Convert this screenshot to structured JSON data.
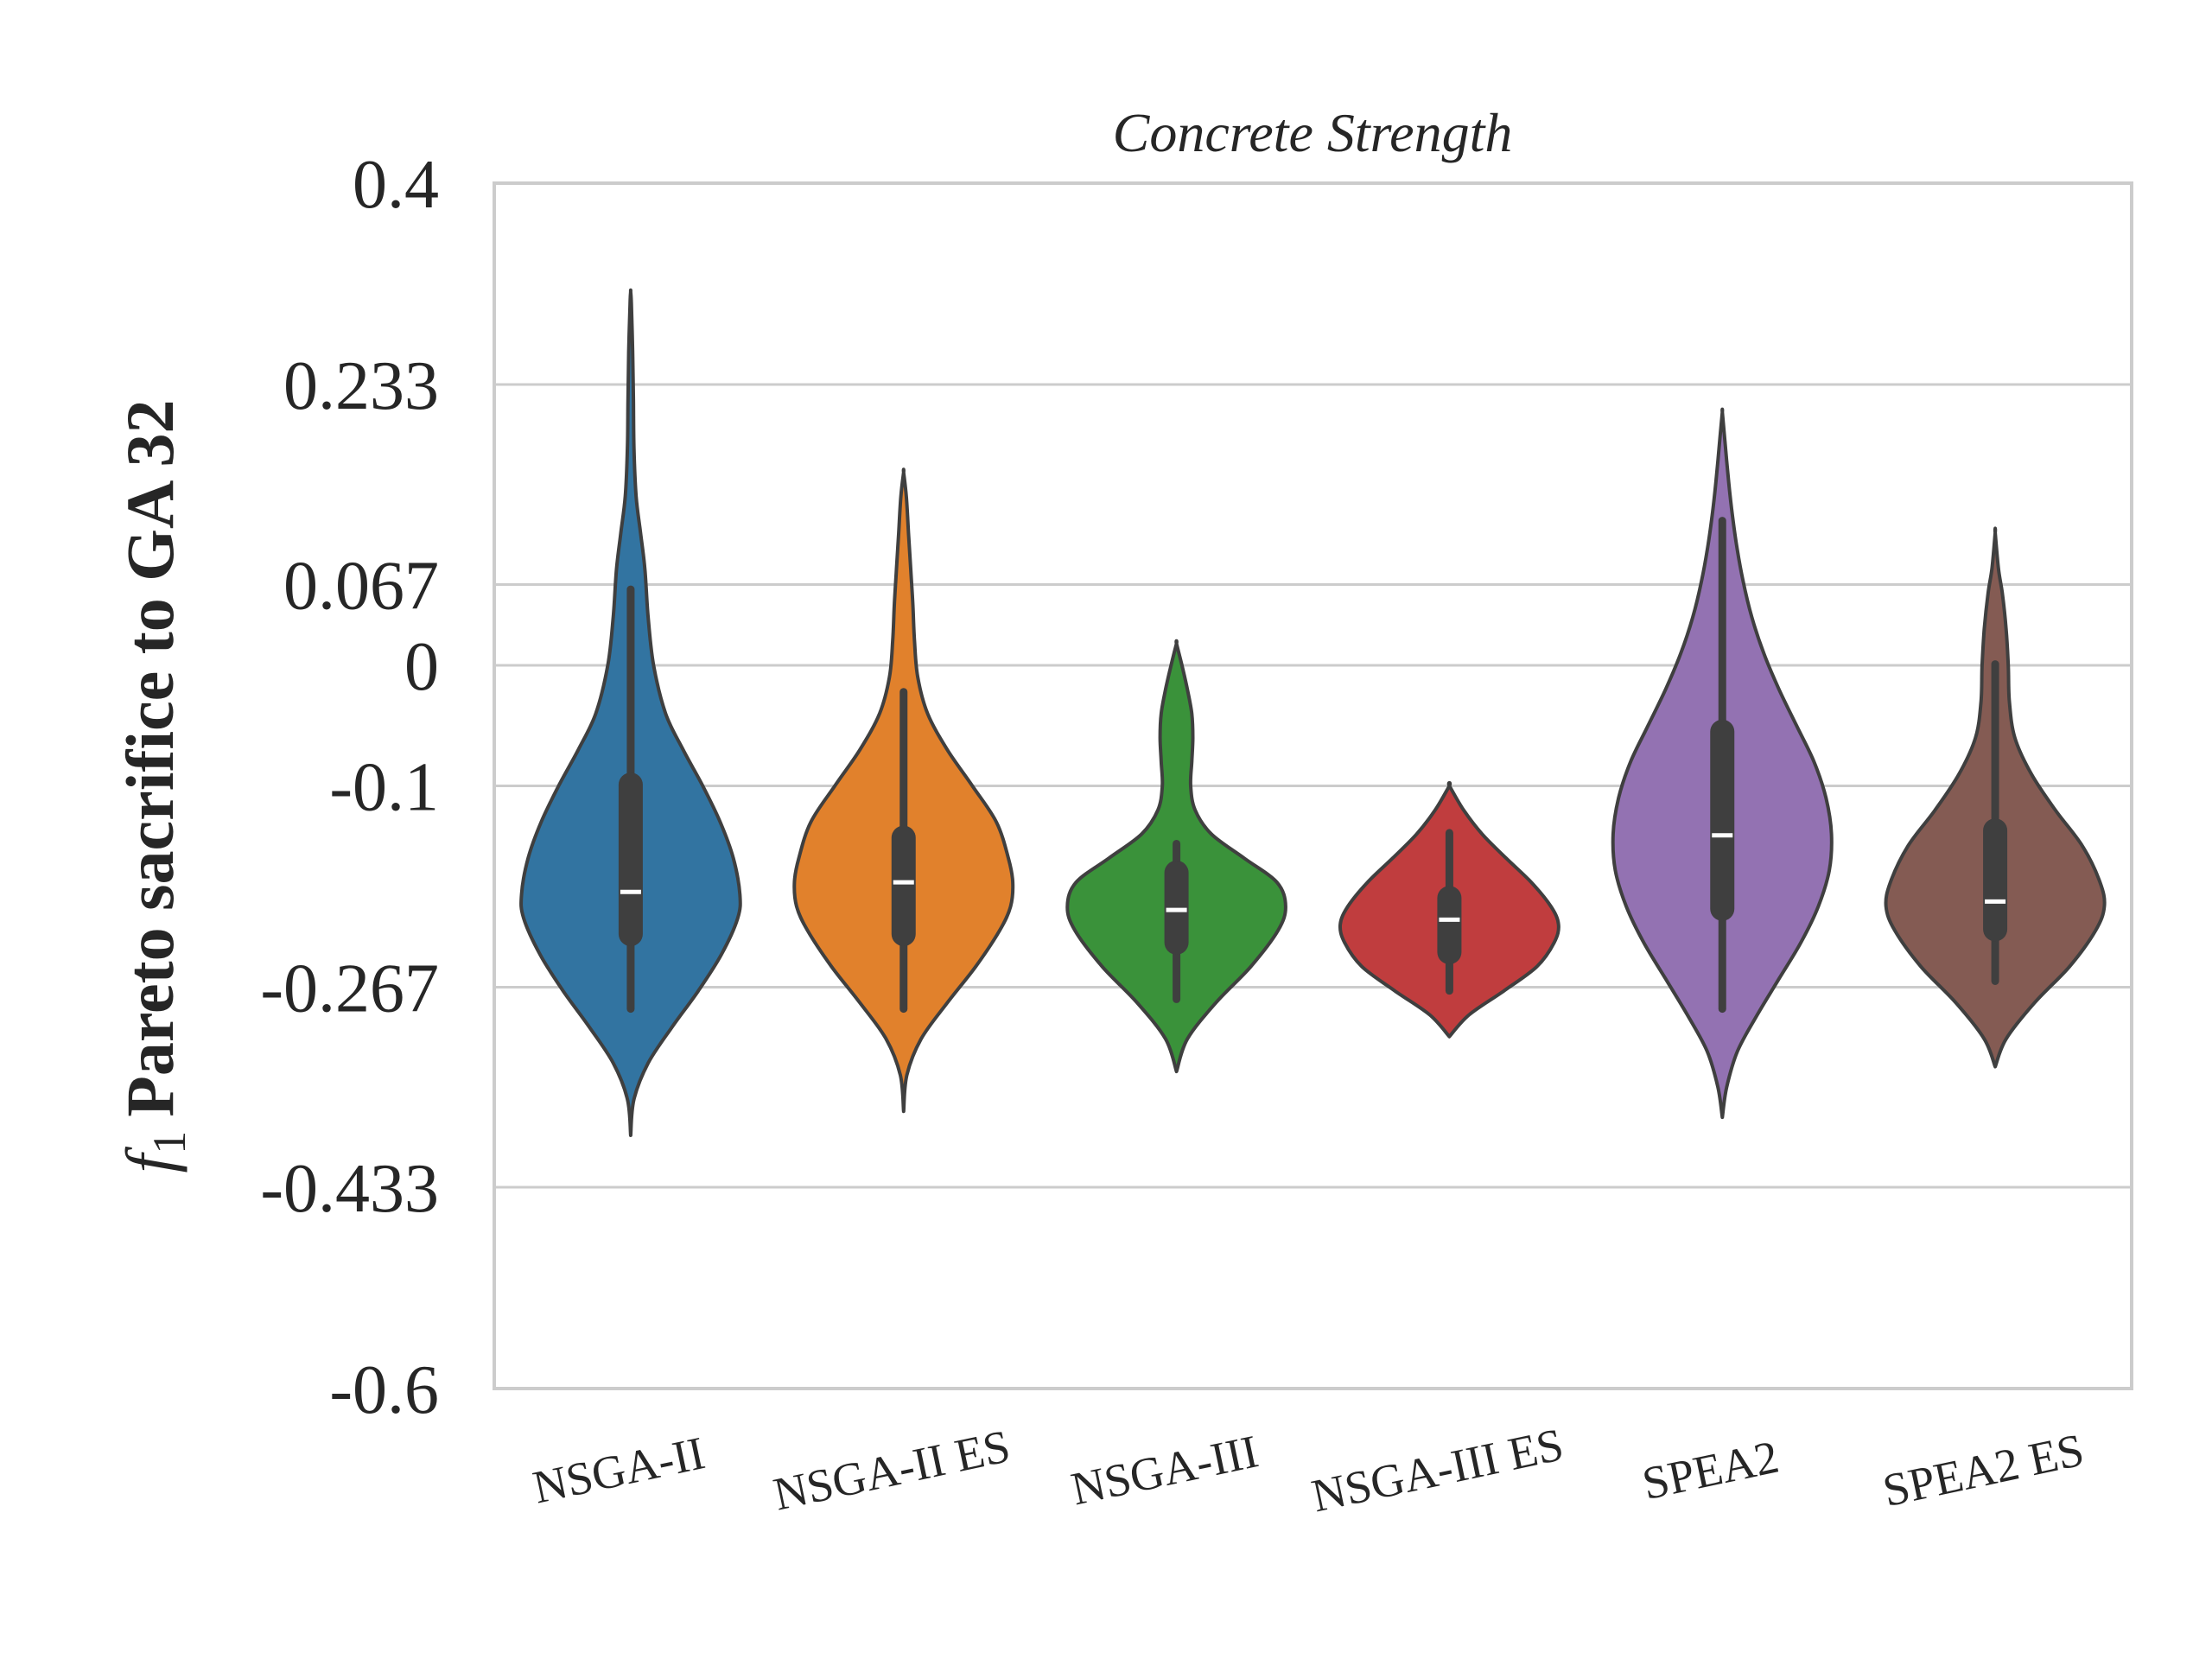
{
  "chart_data": {
    "type": "violin",
    "title": "Concrete Strength",
    "ylabel_symbol": "f",
    "ylabel_subscript": "1",
    "ylabel": "Pareto sacrifice to GA 32",
    "xlabel": "",
    "ylim": [
      -0.6,
      0.4
    ],
    "yticks": [
      0.4,
      0.233,
      0.067,
      0,
      -0.1,
      -0.267,
      -0.433,
      -0.6
    ],
    "ytick_labels": [
      "0.4",
      "0.233",
      "0.067",
      "0",
      "-0.1",
      "-0.267",
      "-0.433",
      "-0.6"
    ],
    "grid": true,
    "line_color": "#3f3f3f",
    "grid_color": "#cccccc",
    "series": [
      {
        "category": "NSGA-II",
        "color": "#3274a1",
        "median": -0.188,
        "q1": -0.233,
        "q3": -0.089,
        "whisker_low": -0.285,
        "whisker_high": 0.063,
        "profile": [
          [
            -0.39,
            0.0
          ],
          [
            -0.36,
            0.03
          ],
          [
            -0.33,
            0.16
          ],
          [
            -0.3,
            0.38
          ],
          [
            -0.27,
            0.62
          ],
          [
            -0.24,
            0.83
          ],
          [
            -0.21,
            0.98
          ],
          [
            -0.19,
            1.0
          ],
          [
            -0.16,
            0.94
          ],
          [
            -0.13,
            0.82
          ],
          [
            -0.1,
            0.66
          ],
          [
            -0.07,
            0.48
          ],
          [
            -0.04,
            0.32
          ],
          [
            0.0,
            0.21
          ],
          [
            0.04,
            0.16
          ],
          [
            0.08,
            0.13
          ],
          [
            0.11,
            0.09
          ],
          [
            0.14,
            0.05
          ],
          [
            0.18,
            0.03
          ],
          [
            0.22,
            0.025
          ],
          [
            0.26,
            0.018
          ],
          [
            0.3,
            0.006
          ],
          [
            0.31,
            0.0
          ]
        ]
      },
      {
        "category": "NSGA-II ES",
        "color": "#e1812c",
        "median": -0.18,
        "q1": -0.233,
        "q3": -0.133,
        "whisker_low": -0.285,
        "whisker_high": -0.022,
        "profile": [
          [
            -0.37,
            0.0
          ],
          [
            -0.34,
            0.03
          ],
          [
            -0.31,
            0.16
          ],
          [
            -0.28,
            0.4
          ],
          [
            -0.25,
            0.66
          ],
          [
            -0.22,
            0.88
          ],
          [
            -0.2,
            0.98
          ],
          [
            -0.18,
            1.0
          ],
          [
            -0.16,
            0.96
          ],
          [
            -0.13,
            0.85
          ],
          [
            -0.1,
            0.63
          ],
          [
            -0.07,
            0.4
          ],
          [
            -0.04,
            0.22
          ],
          [
            -0.01,
            0.13
          ],
          [
            0.02,
            0.1
          ],
          [
            0.05,
            0.085
          ],
          [
            0.08,
            0.065
          ],
          [
            0.11,
            0.045
          ],
          [
            0.14,
            0.025
          ],
          [
            0.16,
            0.0
          ]
        ]
      },
      {
        "category": "NSGA-III",
        "color": "#3a923a",
        "median": -0.203,
        "q1": -0.24,
        "q3": -0.162,
        "whisker_low": -0.277,
        "whisker_high": -0.148,
        "profile": [
          [
            -0.337,
            0.0
          ],
          [
            -0.31,
            0.1
          ],
          [
            -0.28,
            0.36
          ],
          [
            -0.25,
            0.68
          ],
          [
            -0.22,
            0.93
          ],
          [
            -0.2,
            1.0
          ],
          [
            -0.18,
            0.92
          ],
          [
            -0.16,
            0.62
          ],
          [
            -0.14,
            0.32
          ],
          [
            -0.12,
            0.17
          ],
          [
            -0.1,
            0.13
          ],
          [
            -0.08,
            0.14
          ],
          [
            -0.06,
            0.15
          ],
          [
            -0.04,
            0.14
          ],
          [
            -0.02,
            0.1
          ],
          [
            0.0,
            0.05
          ],
          [
            0.018,
            0.0
          ]
        ]
      },
      {
        "category": "NSGA-III ES",
        "color": "#c03d3e",
        "median": -0.211,
        "q1": -0.248,
        "q3": -0.183,
        "whisker_low": -0.27,
        "whisker_high": -0.139,
        "profile": [
          [
            -0.308,
            0.0
          ],
          [
            -0.29,
            0.18
          ],
          [
            -0.27,
            0.5
          ],
          [
            -0.25,
            0.8
          ],
          [
            -0.23,
            0.96
          ],
          [
            -0.215,
            1.0
          ],
          [
            -0.2,
            0.93
          ],
          [
            -0.18,
            0.75
          ],
          [
            -0.16,
            0.52
          ],
          [
            -0.14,
            0.3
          ],
          [
            -0.12,
            0.13
          ],
          [
            -0.1,
            0.0
          ]
        ]
      },
      {
        "category": "SPEA2",
        "color": "#9372b2",
        "median": -0.141,
        "q1": -0.212,
        "q3": -0.045,
        "whisker_low": -0.285,
        "whisker_high": 0.12,
        "profile": [
          [
            -0.375,
            0.0
          ],
          [
            -0.35,
            0.04
          ],
          [
            -0.32,
            0.14
          ],
          [
            -0.29,
            0.32
          ],
          [
            -0.26,
            0.52
          ],
          [
            -0.23,
            0.72
          ],
          [
            -0.2,
            0.88
          ],
          [
            -0.17,
            0.98
          ],
          [
            -0.14,
            1.0
          ],
          [
            -0.11,
            0.95
          ],
          [
            -0.08,
            0.84
          ],
          [
            -0.05,
            0.68
          ],
          [
            -0.02,
            0.52
          ],
          [
            0.01,
            0.38
          ],
          [
            0.04,
            0.27
          ],
          [
            0.07,
            0.19
          ],
          [
            0.1,
            0.13
          ],
          [
            0.13,
            0.085
          ],
          [
            0.16,
            0.05
          ],
          [
            0.19,
            0.02
          ],
          [
            0.21,
            0.0
          ]
        ]
      },
      {
        "category": "SPEA2 ES",
        "color": "#845b53",
        "median": -0.196,
        "q1": -0.229,
        "q3": -0.127,
        "whisker_low": -0.262,
        "whisker_high": 0.001,
        "profile": [
          [
            -0.333,
            0.0
          ],
          [
            -0.31,
            0.1
          ],
          [
            -0.28,
            0.36
          ],
          [
            -0.25,
            0.68
          ],
          [
            -0.22,
            0.92
          ],
          [
            -0.2,
            1.0
          ],
          [
            -0.18,
            0.96
          ],
          [
            -0.15,
            0.8
          ],
          [
            -0.12,
            0.55
          ],
          [
            -0.09,
            0.33
          ],
          [
            -0.06,
            0.18
          ],
          [
            -0.03,
            0.13
          ],
          [
            0.0,
            0.12
          ],
          [
            0.03,
            0.1
          ],
          [
            0.06,
            0.065
          ],
          [
            0.08,
            0.03
          ],
          [
            0.11,
            0.0
          ]
        ]
      }
    ]
  }
}
